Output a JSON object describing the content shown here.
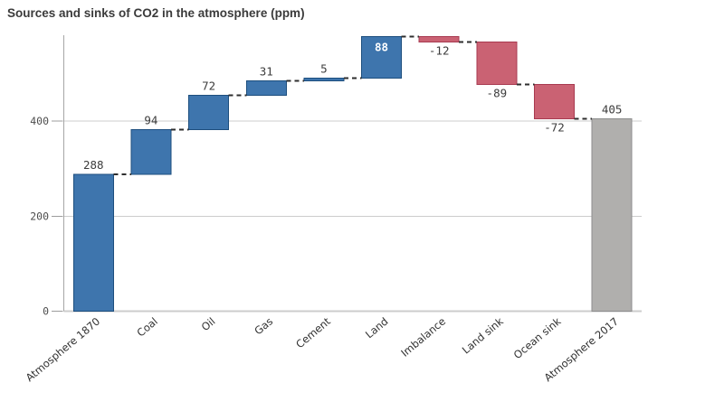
{
  "chart_data": {
    "type": "bar",
    "subtype": "waterfall",
    "title": "Sources and sinks of CO2 in the atmosphere (ppm)",
    "xlabel": "",
    "ylabel": "",
    "legend": null,
    "y_axis": {
      "ticks": [
        0,
        200,
        400
      ],
      "tick_labels": [
        "0",
        "200",
        "400"
      ],
      "range": [
        0,
        580
      ],
      "grid": true
    },
    "categories": [
      "Atmosphere 1870",
      "Coal",
      "Oil",
      "Gas",
      "Cement",
      "Land",
      "Imbalance",
      "Land sink",
      "Ocean sink",
      "Atmosphere 2017"
    ],
    "points": [
      {
        "category": "Atmosphere 1870",
        "value": 288,
        "label": "288",
        "kind": "increase",
        "label_pos": "above"
      },
      {
        "category": "Coal",
        "value": 94,
        "label": "94",
        "kind": "increase",
        "label_pos": "above"
      },
      {
        "category": "Oil",
        "value": 72,
        "label": "72",
        "kind": "increase",
        "label_pos": "above"
      },
      {
        "category": "Gas",
        "value": 31,
        "label": "31",
        "kind": "increase",
        "label_pos": "above"
      },
      {
        "category": "Cement",
        "value": 5,
        "label": "5",
        "kind": "increase",
        "label_pos": "above"
      },
      {
        "category": "Land",
        "value": 88,
        "label": "88",
        "kind": "increase",
        "label_pos": "inside"
      },
      {
        "category": "Imbalance",
        "value": -12,
        "label": "-12",
        "kind": "decrease",
        "label_pos": "below"
      },
      {
        "category": "Land sink",
        "value": -89,
        "label": "-89",
        "kind": "decrease",
        "label_pos": "below"
      },
      {
        "category": "Ocean sink",
        "value": -72,
        "label": "-72",
        "kind": "decrease",
        "label_pos": "below"
      },
      {
        "category": "Atmosphere 2017",
        "value": 405,
        "label": "405",
        "kind": "total",
        "label_pos": "above"
      }
    ],
    "colors": {
      "increase_fill": "#3e75ad",
      "increase_stroke": "#1d4e7e",
      "decrease_fill": "#ca6273",
      "decrease_stroke": "#a83a50",
      "total_fill": "#b0afad",
      "total_stroke": "#8e8e8e",
      "gridline": "#cccccc",
      "axis_line": "#a6a6a6",
      "tick_mark": "#9c9c9c",
      "connector": "#2e2e2e",
      "value_label": "#3c3c3c",
      "inside_value_label": "#ffffff",
      "tick_label": "#4d4d4d",
      "category_label": "#303030",
      "title": "#3b3b3b",
      "background": "#ffffff"
    }
  }
}
